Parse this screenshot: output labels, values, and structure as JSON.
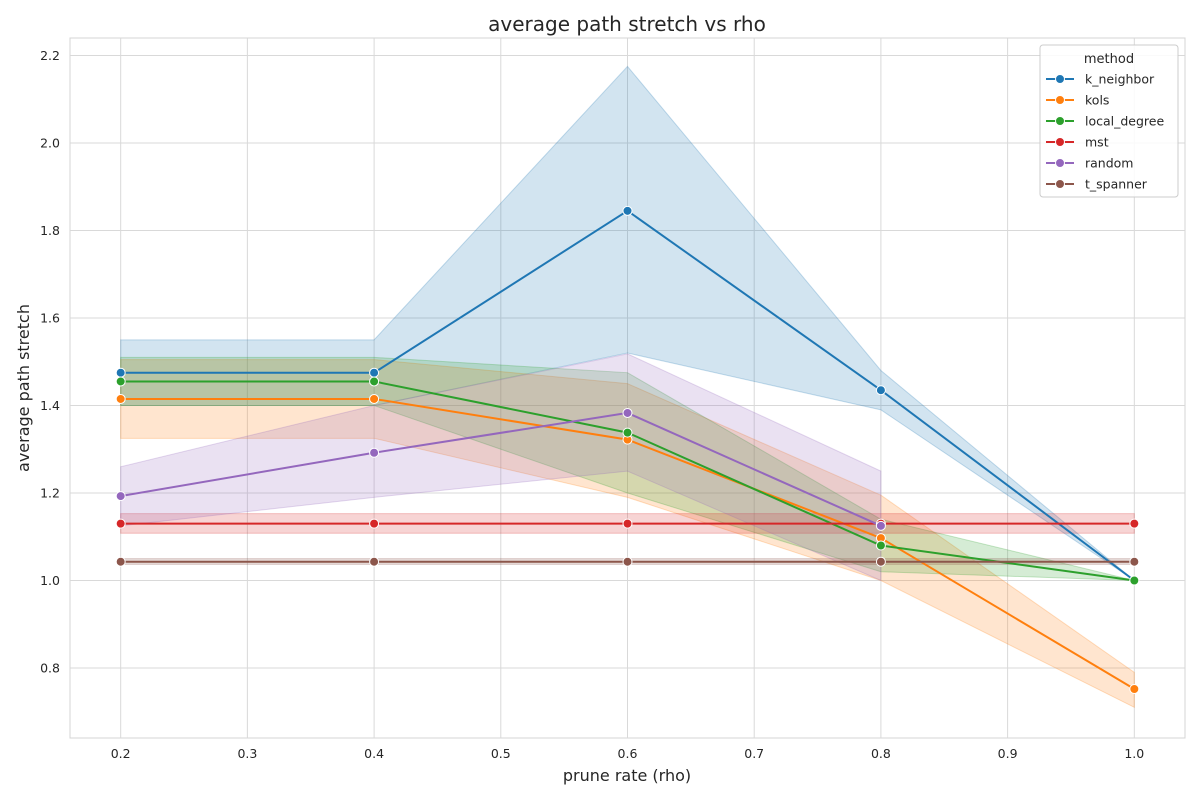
{
  "chart_data": {
    "type": "line",
    "title": "average path stretch vs rho",
    "xlabel": "prune rate (rho)",
    "ylabel": "average path stretch",
    "xlim": [
      0.16,
      1.04
    ],
    "ylim": [
      0.64,
      2.24
    ],
    "xticks": [
      "0.2",
      "0.3",
      "0.4",
      "0.5",
      "0.6",
      "0.7",
      "0.8",
      "0.9",
      "1.0"
    ],
    "yticks": [
      "0.8",
      "1.0",
      "1.2",
      "1.4",
      "1.6",
      "1.8",
      "2.0",
      "2.2"
    ],
    "grid": true,
    "legend": {
      "title": "method",
      "position": "top-right"
    },
    "x": [
      0.2,
      0.4,
      0.6,
      0.8,
      1.0
    ],
    "series": [
      {
        "name": "k_neighbor",
        "color": "#1f77b4",
        "values": [
          1.475,
          1.475,
          1.845,
          1.435,
          1.0
        ],
        "lower": [
          1.4,
          1.4,
          1.52,
          1.39,
          1.0
        ],
        "upper": [
          1.55,
          1.55,
          2.175,
          1.48,
          1.0
        ]
      },
      {
        "name": "kols",
        "color": "#ff7f0e",
        "values": [
          1.415,
          1.415,
          1.322,
          1.097,
          0.752
        ],
        "lower": [
          1.325,
          1.325,
          1.19,
          1.0,
          0.71
        ],
        "upper": [
          1.505,
          1.505,
          1.45,
          1.195,
          0.79
        ]
      },
      {
        "name": "local_degree",
        "color": "#2ca02c",
        "values": [
          1.455,
          1.455,
          1.338,
          1.08,
          1.0
        ],
        "lower": [
          1.4,
          1.4,
          1.2,
          1.02,
          1.0
        ],
        "upper": [
          1.51,
          1.51,
          1.475,
          1.14,
          1.0
        ]
      },
      {
        "name": "mst",
        "color": "#d62728",
        "values": [
          1.13,
          1.13,
          1.13,
          1.13,
          1.13
        ],
        "lower": [
          1.108,
          1.108,
          1.108,
          1.108,
          1.108
        ],
        "upper": [
          1.153,
          1.153,
          1.153,
          1.153,
          1.153
        ]
      },
      {
        "name": "random",
        "color": "#9467bd",
        "values": [
          1.193,
          1.292,
          1.383,
          1.125,
          null
        ],
        "lower": [
          1.125,
          1.19,
          1.25,
          1.0,
          null
        ],
        "upper": [
          1.26,
          1.4,
          1.518,
          1.25,
          null
        ]
      },
      {
        "name": "t_spanner",
        "color": "#8c564b",
        "values": [
          1.043,
          1.043,
          1.043,
          1.043,
          1.043
        ],
        "lower": [
          1.037,
          1.037,
          1.037,
          1.037,
          1.037
        ],
        "upper": [
          1.05,
          1.05,
          1.05,
          1.05,
          1.05
        ]
      }
    ]
  }
}
